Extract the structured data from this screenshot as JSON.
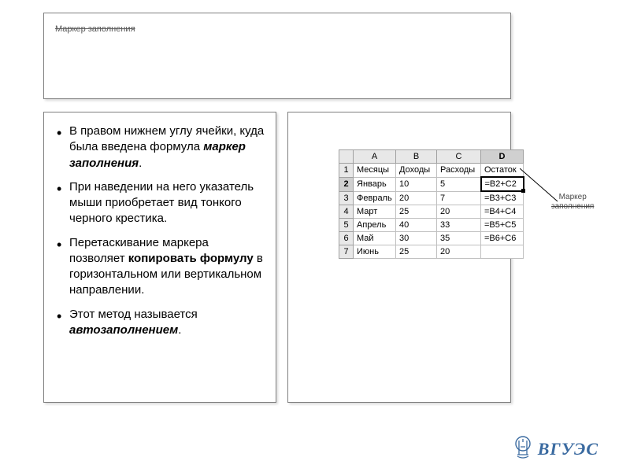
{
  "title": "Маркер заполнения",
  "bullets": [
    {
      "pre": "В правом нижнем углу ячейки, куда была введена формула ",
      "em": "маркер заполнения",
      "post": "."
    },
    {
      "pre": "При наведении на него указатель мыши приобретает вид тонкого черного крестика.",
      "em": "",
      "post": ""
    },
    {
      "pre": "Перетаскивание маркера позволяет ",
      "em": "копировать формулу",
      "post": " в горизонтальном или вертикальном направлении."
    },
    {
      "pre": "Этот метод называется ",
      "em": "автозаполнением",
      "post": "."
    }
  ],
  "table": {
    "col_headers": [
      "A",
      "B",
      "C",
      "D"
    ],
    "active_col_index": 3,
    "active_row_index": 1,
    "rows": [
      {
        "n": "1",
        "cells": [
          "Месяцы",
          "Доходы",
          "Расходы",
          "Остаток"
        ]
      },
      {
        "n": "2",
        "cells": [
          "Январь",
          "10",
          "5",
          "=B2+C2"
        ]
      },
      {
        "n": "3",
        "cells": [
          "Февраль",
          "20",
          "7",
          "=B3+C3"
        ]
      },
      {
        "n": "4",
        "cells": [
          "Март",
          "25",
          "20",
          "=B4+C4"
        ]
      },
      {
        "n": "5",
        "cells": [
          "Апрель",
          "40",
          "33",
          "=B5+C5"
        ]
      },
      {
        "n": "6",
        "cells": [
          "Май",
          "30",
          "35",
          "=B6+C6"
        ]
      },
      {
        "n": "7",
        "cells": [
          "Июнь",
          "25",
          "20",
          ""
        ]
      }
    ]
  },
  "callout": {
    "line1": "Маркер",
    "line2": "заполнения"
  },
  "logo": "ВГУЭС",
  "colors": {
    "border": "#808080",
    "header_bg": "#e8e8e8",
    "logo": "#3a6aa0"
  }
}
